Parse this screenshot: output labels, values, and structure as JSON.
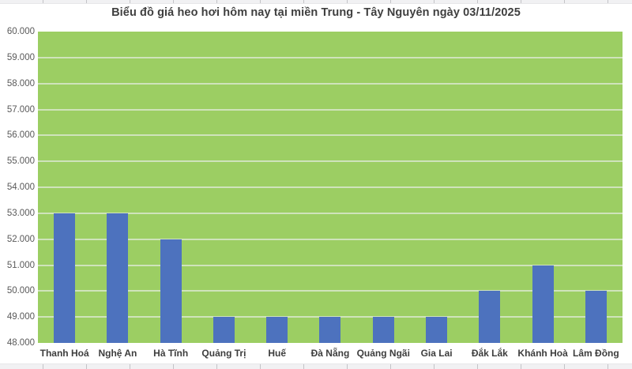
{
  "page": {
    "background": "#ffffff",
    "top_edge_strip": "cropped table row edge",
    "bottom_edge_strip": "cropped table row edge"
  },
  "chart_data": {
    "type": "bar",
    "title": "Biểu đồ giá heo hơi hôm nay tại miền Trung - Tây Nguyên ngày 03/11/2025",
    "categories": [
      "Thanh Hoá",
      "Nghệ An",
      "Hà Tĩnh",
      "Quảng Trị",
      "Huế",
      "Đà Nẵng",
      "Quảng Ngãi",
      "Gia Lai",
      "Đắk Lắk",
      "Khánh Hoà",
      "Lâm Đồng"
    ],
    "values": [
      53000,
      53000,
      52000,
      49000,
      49000,
      49000,
      49000,
      49000,
      50000,
      51000,
      50000
    ],
    "xlabel": "",
    "ylabel": "",
    "ylim": [
      48000,
      60000
    ],
    "ytick_step": 1000,
    "ytick_labels": [
      "60.000",
      "59.000",
      "58.000",
      "57.000",
      "56.000",
      "55.000",
      "54.000",
      "53.000",
      "52.000",
      "51.000",
      "50.000",
      "49.000",
      "48.000"
    ],
    "grid": true,
    "legend": false,
    "colors": {
      "bar": "#4d72be",
      "plot_background": "#9cce63",
      "gridline": "#cfe3bb",
      "title_text": "#3f3f3f",
      "ytick_text": "#595959",
      "xtick_text": "#3d3d3d"
    }
  }
}
